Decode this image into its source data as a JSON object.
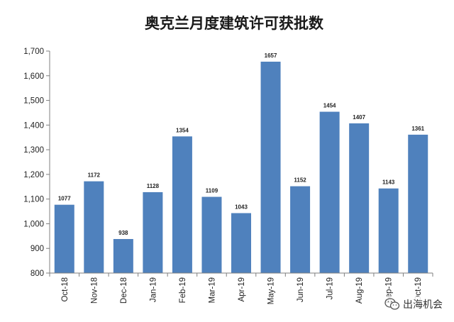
{
  "chart_data": {
    "type": "bar",
    "title": "奥克兰月度建筑许可获批数",
    "categories": [
      "Oct-18",
      "Nov-18",
      "Dec-18",
      "Jan-19",
      "Feb-19",
      "Mar-19",
      "Apr-19",
      "May-19",
      "Jun-19",
      "Jul-19",
      "Aug-19",
      "Sep-19",
      "Oct-19"
    ],
    "tick_labels": [
      "Oct-18",
      "Nov-18",
      "Dec-18",
      "Jan-19",
      "Feb-19",
      "Mar-19",
      "Apr-19",
      "May-19",
      "Jun-19",
      "Jul-19",
      "Aug-19",
      "Sep-19",
      "Oct-19"
    ],
    "values": [
      1077,
      1172,
      938,
      1128,
      1354,
      1109,
      1043,
      1657,
      1152,
      1454,
      1407,
      1143,
      1361
    ],
    "data_labels": [
      "1077",
      "1172",
      "938",
      "1128",
      "1354",
      "1109",
      "1043",
      "1657",
      "1152",
      "1454",
      "1407",
      "1143",
      "1361"
    ],
    "ylim": [
      800,
      1700
    ],
    "yticks": [
      "800",
      "900",
      "1,000",
      "1,100",
      "1,200",
      "1,300",
      "1,400",
      "1,500",
      "1,600",
      "1,700"
    ],
    "xlabel": "",
    "ylabel": "",
    "grid": false,
    "bar_color": "#4f81bd"
  },
  "watermark": {
    "text": "出海机会",
    "icon": "wechat-icon"
  }
}
